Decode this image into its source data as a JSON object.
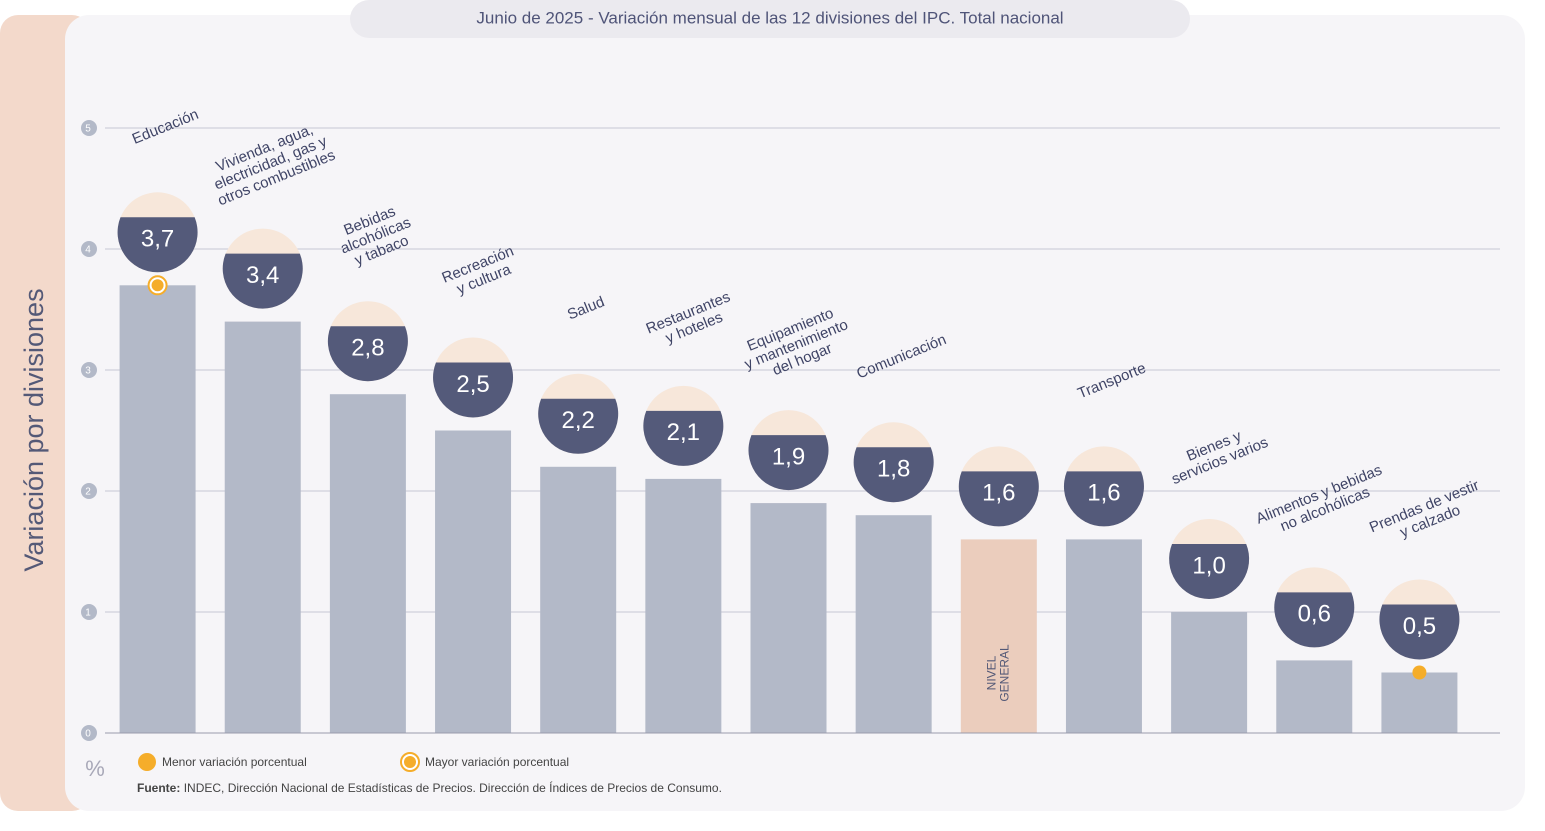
{
  "chart_data": {
    "type": "bar",
    "title": "Junio de 2025 - Variación mensual de las 12 divisiones del IPC. Total nacional",
    "y_label": "Variación por divisiones",
    "unit_label": "%",
    "categories": [
      "Educación",
      "Vivienda, agua,\nelectricidad, gas y\notros combustibles",
      "Bebidas\nalcohólicas\ny tabaco",
      "Recreación\ny cultura",
      "Salud",
      "Restaurantes\ny hoteles",
      "Equipamiento\ny mantenimiento\ndel hogar",
      "Comunicación",
      "NIVEL\nGENERAL",
      "Transporte",
      "Bienes y\nservicios varios",
      "Alimentos y bebidas\nno alcohólicas",
      "Prendas de vestir\ny calzado"
    ],
    "values": [
      3.7,
      3.4,
      2.8,
      2.5,
      2.2,
      2.1,
      1.9,
      1.8,
      1.6,
      1.6,
      1.0,
      0.6,
      0.5
    ],
    "value_labels": [
      "3,7",
      "3,4",
      "2,8",
      "2,5",
      "2,2",
      "2,1",
      "1,9",
      "1,8",
      "1,6",
      "1,6",
      "1,0",
      "0,6",
      "0,5"
    ],
    "color": "#b3b9c8",
    "colors": [
      "#b3b9c8",
      "#b3b9c8",
      "#b3b9c8",
      "#b3b9c8",
      "#b3b9c8",
      "#b3b9c8",
      "#b3b9c8",
      "#b3b9c8",
      "#ebcdbd",
      "#b3b9c8",
      "#b3b9c8",
      "#b3b9c8",
      "#b3b9c8"
    ],
    "ylim": [
      0,
      5
    ],
    "yticks": [
      0,
      1,
      2,
      3,
      4,
      5
    ],
    "grid": true,
    "legend": [
      {
        "name": "Menor variación porcentual",
        "color": "#f5ad2a"
      },
      {
        "name": "Mayor variación porcentual",
        "color": "#f5ad2a"
      }
    ],
    "source_label": "Fuente:",
    "source": "INDEC, Dirección Nacional de Estadísticas de Precios. Dirección de Índices de Precios de Consumo."
  }
}
